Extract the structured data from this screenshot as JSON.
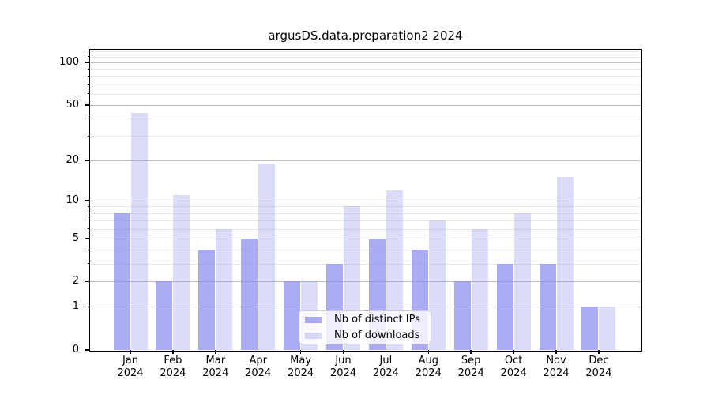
{
  "chart_data": {
    "type": "bar",
    "title": "argusDS.data.preparation2 2024",
    "categories": [
      "Jan",
      "Feb",
      "Mar",
      "Apr",
      "May",
      "Jun",
      "Jul",
      "Aug",
      "Sep",
      "Oct",
      "Nov",
      "Dec"
    ],
    "year_label": "2024",
    "series": [
      {
        "name": "Nb of distinct IPs",
        "values": [
          8,
          2,
          4,
          5,
          2,
          3,
          5,
          4,
          2,
          3,
          3,
          1
        ],
        "color": "rgba(136,136,238,0.7)"
      },
      {
        "name": "Nb of downloads",
        "values": [
          44,
          11,
          6,
          19,
          2,
          9,
          12,
          7,
          6,
          8,
          15,
          1
        ],
        "color": "rgba(136,136,238,0.3)"
      }
    ],
    "yscale": "log1p",
    "ylim": [
      0,
      122
    ],
    "y_major_ticks": [
      0,
      1,
      2,
      5,
      10,
      20,
      50,
      100
    ],
    "y_minor_ticks": [
      3,
      4,
      6,
      7,
      8,
      9,
      30,
      40,
      60,
      70,
      80,
      90,
      110,
      120
    ],
    "grid": true,
    "legend_position": "lower center",
    "colors": {
      "bar_base": "#8888ee",
      "major_grid": "#bdbdbd",
      "minor_grid": "#e9e9e9",
      "axis": "#000000",
      "text": "#000000",
      "legend_border": "#cccccc"
    }
  }
}
